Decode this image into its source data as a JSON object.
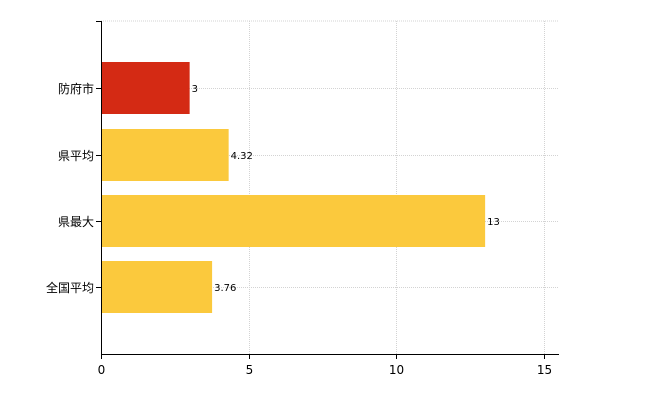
{
  "chart_data": {
    "type": "bar",
    "orientation": "horizontal",
    "categories": [
      "防府市",
      "県平均",
      "県最大",
      "全国平均"
    ],
    "values": [
      3,
      4.32,
      13,
      3.76
    ],
    "value_labels": [
      "3",
      "4.32",
      "13",
      "3.76"
    ],
    "bar_colors": [
      "#d42a14",
      "#fbc93d",
      "#fbc93d",
      "#fbc93d"
    ],
    "xlim": [
      0,
      15.5
    ],
    "xticks": [
      0,
      5,
      10,
      15
    ],
    "xtick_labels": [
      "0",
      "5",
      "10",
      "15"
    ],
    "grid": true,
    "title": "",
    "xlabel": "",
    "ylabel": ""
  }
}
